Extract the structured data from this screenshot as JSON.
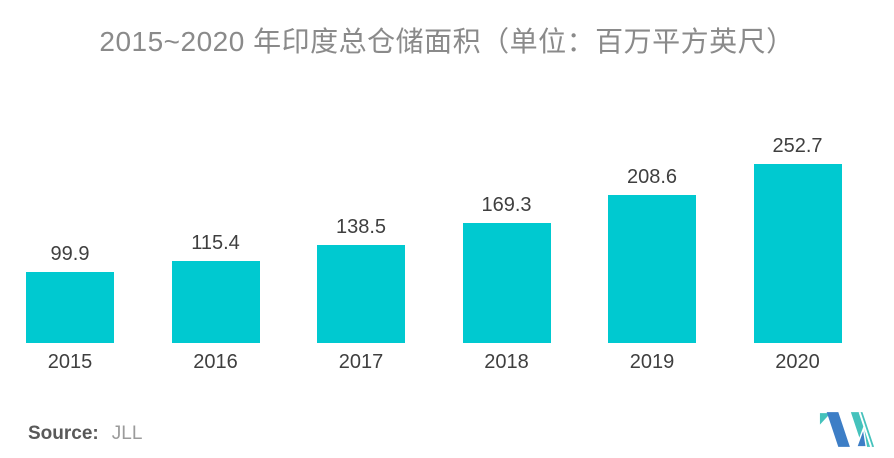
{
  "chart_data": {
    "type": "bar",
    "title": "2015~2020 年印度总仓储面积（单位：百万平方英尺）",
    "unit": "百万平方英尺",
    "categories": [
      "2015",
      "2016",
      "2017",
      "2018",
      "2019",
      "2020"
    ],
    "values": [
      99.9,
      115.4,
      138.5,
      169.3,
      208.6,
      252.7
    ],
    "value_labels": [
      "99.9",
      "115.4",
      "138.5",
      "169.3",
      "208.6",
      "252.7"
    ],
    "bar_color": "#00C9D0",
    "title_color": "#8A8A8A",
    "value_label_color": "#3F3F3F",
    "axis_label_color": "#3F3F3F",
    "ylim": [
      0,
      260
    ],
    "grid": false,
    "legend": false,
    "xlabel": "",
    "ylabel": ""
  },
  "source": {
    "label": "Source:",
    "value": "JLL"
  },
  "logo": {
    "name": "mordor-intelligence-logo",
    "blue": "#3D7EC6",
    "teal": "#45C2BC"
  }
}
